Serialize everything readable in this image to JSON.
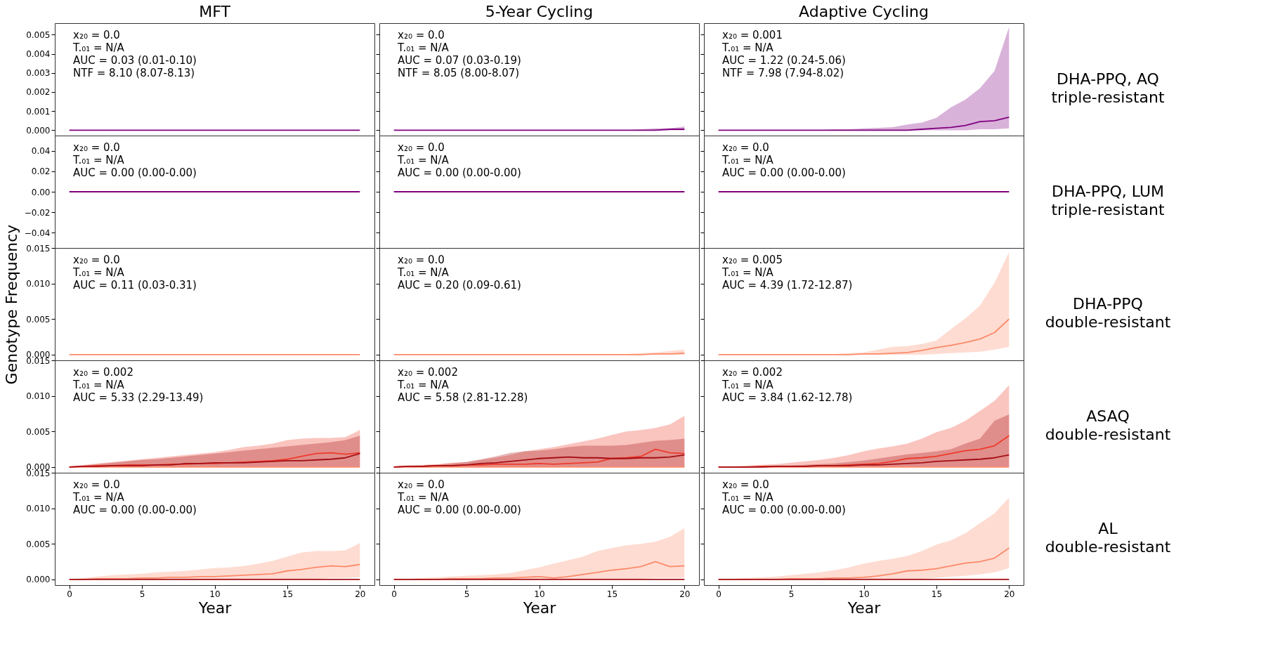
{
  "chart_data": [
    {
      "type": "line",
      "title": "MFT",
      "x": [
        0,
        1,
        2,
        3,
        4,
        5,
        6,
        7,
        8,
        9,
        10,
        11,
        12,
        13,
        14,
        15,
        16,
        17,
        18,
        19,
        20
      ],
      "xlim": [
        -1,
        21
      ],
      "ylim": [
        -0.00028,
        0.0056
      ],
      "yticks": [
        {
          "value": 0,
          "label": "0.000"
        },
        0.001,
        0.002,
        0.003,
        0.004,
        0.005
      ],
      "tick_labels": "y",
      "series": [
        {
          "color": "#800080",
          "values": [
            0,
            0,
            0,
            0,
            0,
            0,
            0,
            0,
            0,
            0,
            0,
            0,
            0,
            0,
            0,
            0,
            0,
            0,
            0,
            0,
            0
          ]
        }
      ],
      "annotations": [
        "x₂₀ = 0.0",
        "T.₀₁ = N/A",
        "AUC = 0.03 (0.01-0.10)",
        "NTF = 8.10 (8.07-8.13)"
      ]
    },
    {
      "type": "line",
      "title": "5-Year Cycling",
      "x": [
        0,
        1,
        2,
        3,
        4,
        5,
        6,
        7,
        8,
        9,
        10,
        11,
        12,
        13,
        14,
        15,
        16,
        17,
        18,
        19,
        20
      ],
      "xlim": [
        -1,
        21
      ],
      "ylim": [
        -0.00028,
        0.0056
      ],
      "yticks": [
        0,
        0.001,
        0.002,
        0.003,
        0.004,
        0.005
      ],
      "tick_labels": false,
      "series": [
        {
          "color": "#800080",
          "values": [
            0,
            0,
            0,
            0,
            0,
            0,
            0,
            0,
            0,
            0,
            0,
            0,
            0,
            0,
            0,
            0,
            0,
            0,
            0,
            5e-05,
            5e-05
          ],
          "lower": [
            0,
            0,
            0,
            0,
            0,
            0,
            0,
            0,
            0,
            0,
            0,
            0,
            0,
            0,
            0,
            0,
            0,
            0,
            0,
            0,
            0
          ],
          "upper": [
            0,
            0,
            0,
            0,
            0,
            0,
            0,
            0,
            0,
            0,
            0,
            0,
            0,
            0,
            0,
            0,
            0,
            5e-05,
            0.0001,
            0.0001,
            0.0002
          ]
        }
      ],
      "annotations": [
        "x₂₀ = 0.0",
        "T.₀₁ = N/A",
        "AUC = 0.07 (0.03-0.19)",
        "NTF = 8.05 (8.00-8.07)"
      ]
    },
    {
      "type": "line",
      "title": "Adaptive Cycling",
      "y2label": "DHA-PPQ, AQ\ntriple-resistant",
      "x": [
        0,
        1,
        2,
        3,
        4,
        5,
        6,
        7,
        8,
        9,
        10,
        11,
        12,
        13,
        14,
        15,
        16,
        17,
        18,
        19,
        20
      ],
      "xlim": [
        -1,
        21
      ],
      "ylim": [
        -0.00028,
        0.0056
      ],
      "yticks": [
        0,
        0.001,
        0.002,
        0.003,
        0.004,
        0.005
      ],
      "tick_labels": false,
      "series": [
        {
          "color": "#800080",
          "values": [
            0,
            0,
            0,
            0,
            0,
            0,
            0,
            0,
            0,
            0,
            0,
            0,
            0,
            0,
            5e-05,
            0.0001,
            0.00015,
            0.00025,
            0.00045,
            0.0005,
            0.00068
          ],
          "lower": [
            0,
            0,
            0,
            0,
            0,
            0,
            0,
            0,
            0,
            0,
            0,
            0,
            0,
            0,
            0,
            0,
            0,
            0,
            5e-05,
            5e-05,
            0.0001
          ],
          "upper": [
            0,
            0,
            0,
            0,
            0,
            0,
            0,
            0,
            5e-05,
            5e-05,
            0.0001,
            0.00012,
            0.00016,
            0.0003,
            0.0004,
            0.00065,
            0.0012,
            0.0016,
            0.0022,
            0.0031,
            0.0054
          ]
        }
      ],
      "annotations": [
        "x₂₀ = 0.001",
        "T.₀₁ = N/A",
        "AUC = 1.22 (0.24-5.06)",
        "NTF = 7.98 (7.94-8.02)"
      ]
    },
    {
      "type": "line",
      "x": [
        0,
        1,
        2,
        3,
        4,
        5,
        6,
        7,
        8,
        9,
        10,
        11,
        12,
        13,
        14,
        15,
        16,
        17,
        18,
        19,
        20
      ],
      "xlim": [
        -1,
        21
      ],
      "ylim": [
        -0.055,
        0.055
      ],
      "yticks": [
        {
          "value": -0.04,
          "label": "−0.04"
        },
        {
          "value": -0.02,
          "label": "−0.02"
        },
        {
          "value": 0,
          "label": "0.00"
        },
        0.02,
        0.04
      ],
      "tick_labels": "y",
      "series": [
        {
          "color": "#800080",
          "values": [
            0,
            0,
            0,
            0,
            0,
            0,
            0,
            0,
            0,
            0,
            0,
            0,
            0,
            0,
            0,
            0,
            0,
            0,
            0,
            0,
            0
          ]
        }
      ],
      "annotations": [
        "x₂₀ = 0.0",
        "T.₀₁ = N/A",
        "AUC = 0.00 (0.00-0.00)"
      ]
    },
    {
      "type": "line",
      "x": [
        0,
        1,
        2,
        3,
        4,
        5,
        6,
        7,
        8,
        9,
        10,
        11,
        12,
        13,
        14,
        15,
        16,
        17,
        18,
        19,
        20
      ],
      "xlim": [
        -1,
        21
      ],
      "ylim": [
        -0.055,
        0.055
      ],
      "yticks": [
        -0.04,
        -0.02,
        0,
        0.02,
        0.04
      ],
      "tick_labels": false,
      "series": [
        {
          "color": "#800080",
          "values": [
            0,
            0,
            0,
            0,
            0,
            0,
            0,
            0,
            0,
            0,
            0,
            0,
            0,
            0,
            0,
            0,
            0,
            0,
            0,
            0,
            0
          ]
        }
      ],
      "annotations": [
        "x₂₀ = 0.0",
        "T.₀₁ = N/A",
        "AUC = 0.00 (0.00-0.00)"
      ]
    },
    {
      "type": "line",
      "y2label": "DHA-PPQ, LUM\ntriple-resistant",
      "x": [
        0,
        1,
        2,
        3,
        4,
        5,
        6,
        7,
        8,
        9,
        10,
        11,
        12,
        13,
        14,
        15,
        16,
        17,
        18,
        19,
        20
      ],
      "xlim": [
        -1,
        21
      ],
      "ylim": [
        -0.055,
        0.055
      ],
      "yticks": [
        -0.04,
        -0.02,
        0,
        0.02,
        0.04
      ],
      "tick_labels": false,
      "series": [
        {
          "color": "#800080",
          "values": [
            0,
            0,
            0,
            0,
            0,
            0,
            0,
            0,
            0,
            0,
            0,
            0,
            0,
            0,
            0,
            0,
            0,
            0,
            0,
            0,
            0
          ]
        }
      ],
      "annotations": [
        "x₂₀ = 0.0",
        "T.₀₁ = N/A",
        "AUC = 0.00 (0.00-0.00)"
      ]
    },
    {
      "type": "line",
      "ylabel": "Genotype Frequency",
      "x": [
        0,
        1,
        2,
        3,
        4,
        5,
        6,
        7,
        8,
        9,
        10,
        11,
        12,
        13,
        14,
        15,
        16,
        17,
        18,
        19,
        20
      ],
      "xlim": [
        -1,
        21
      ],
      "ylim": [
        -0.0008,
        0.015
      ],
      "yticks": [
        {
          "value": 0,
          "label": "0.000"
        },
        0.005,
        {
          "value": 0.01,
          "label": "0.010"
        },
        0.015
      ],
      "tick_labels": "y",
      "series": [
        {
          "color": "#fc8a6a",
          "values": [
            0,
            0,
            0,
            0,
            0,
            0,
            0,
            0,
            0,
            0,
            0,
            0,
            0,
            0,
            0,
            0,
            0,
            0,
            0,
            0,
            0
          ],
          "lower": [
            0,
            0,
            0,
            0,
            0,
            0,
            0,
            0,
            0,
            0,
            0,
            0,
            0,
            0,
            0,
            0,
            0,
            0,
            0,
            0,
            0
          ],
          "upper": [
            0,
            0,
            0,
            0,
            0,
            0,
            0,
            0,
            0,
            0,
            0,
            0,
            0,
            0,
            0,
            0,
            0,
            0.0001,
            0.0001,
            0.0001,
            0.0001
          ]
        }
      ],
      "annotations": [
        "x₂₀ = 0.0",
        "T.₀₁ = N/A",
        "AUC = 0.11 (0.03-0.31)"
      ]
    },
    {
      "type": "line",
      "x": [
        0,
        1,
        2,
        3,
        4,
        5,
        6,
        7,
        8,
        9,
        10,
        11,
        12,
        13,
        14,
        15,
        16,
        17,
        18,
        19,
        20
      ],
      "xlim": [
        -1,
        21
      ],
      "ylim": [
        -0.0008,
        0.015
      ],
      "yticks": [
        0,
        0.005,
        0.01,
        0.015
      ],
      "tick_labels": false,
      "series": [
        {
          "color": "#fc8a6a",
          "values": [
            0,
            0,
            0,
            0,
            0,
            0,
            0,
            0,
            0,
            0,
            0,
            0,
            0,
            0,
            0,
            0,
            0,
            0,
            0.0001,
            0.0001,
            0.0002
          ],
          "lower": [
            0,
            0,
            0,
            0,
            0,
            0,
            0,
            0,
            0,
            0,
            0,
            0,
            0,
            0,
            0,
            0,
            0,
            0,
            0,
            0,
            0
          ],
          "upper": [
            0,
            0,
            0,
            0,
            0,
            0,
            0,
            0,
            0,
            0,
            0,
            0,
            0,
            0,
            0,
            0,
            0.0001,
            0.0002,
            0.0003,
            0.0005,
            0.0007
          ]
        }
      ],
      "annotations": [
        "x₂₀ = 0.0",
        "T.₀₁ = N/A",
        "AUC = 0.20 (0.09-0.61)"
      ]
    },
    {
      "type": "line",
      "y2label": "DHA-PPQ\ndouble-resistant",
      "x": [
        0,
        1,
        2,
        3,
        4,
        5,
        6,
        7,
        8,
        9,
        10,
        11,
        12,
        13,
        14,
        15,
        16,
        17,
        18,
        19,
        20
      ],
      "xlim": [
        -1,
        21
      ],
      "ylim": [
        -0.0008,
        0.015
      ],
      "yticks": [
        0,
        0.005,
        0.01,
        0.015
      ],
      "tick_labels": false,
      "series": [
        {
          "color": "#fc8a6a",
          "values": [
            0,
            0,
            0,
            0,
            0,
            0,
            0,
            0,
            0,
            0,
            0.0001,
            0.0001,
            0.0002,
            0.0003,
            0.0006,
            0.001,
            0.0013,
            0.0017,
            0.0022,
            0.0031,
            0.005
          ],
          "lower": [
            0,
            0,
            0,
            0,
            0,
            0,
            0,
            0,
            0,
            0,
            0,
            0,
            0,
            0,
            0,
            0.0001,
            0.0002,
            0.0003,
            0.0004,
            0.0007,
            0.0011
          ],
          "upper": [
            0,
            0,
            0,
            0,
            0,
            0,
            0,
            0.0001,
            0.0001,
            0.0002,
            0.0003,
            0.0007,
            0.0011,
            0.0012,
            0.0015,
            0.002,
            0.0036,
            0.0051,
            0.0069,
            0.0101,
            0.0144
          ]
        }
      ],
      "annotations": [
        "x₂₀ = 0.005",
        "T.₀₁ = N/A",
        "AUC = 4.39 (1.72-12.87)"
      ]
    },
    {
      "type": "line",
      "x": [
        0,
        1,
        2,
        3,
        4,
        5,
        6,
        7,
        8,
        9,
        10,
        11,
        12,
        13,
        14,
        15,
        16,
        17,
        18,
        19,
        20
      ],
      "xlim": [
        -1,
        21
      ],
      "ylim": [
        -0.0008,
        0.015
      ],
      "yticks": [
        {
          "value": 0,
          "label": "0.000"
        },
        0.005,
        {
          "value": 0.01,
          "label": "0.010"
        },
        0.015
      ],
      "tick_labels": "y",
      "series": [
        {
          "color": "#fc8a6a",
          "values": [
            0,
            0,
            0,
            0,
            0,
            0,
            0,
            0,
            0,
            0,
            0,
            0,
            0,
            0,
            0,
            0,
            0,
            0,
            0,
            0,
            0
          ]
        },
        {
          "color": "#ef3b2c",
          "values": [
            0,
            0.0001,
            0.0002,
            0.0002,
            0.0003,
            0.0003,
            0.0003,
            0.0004,
            0.0004,
            0.0005,
            0.0005,
            0.0006,
            0.0007,
            0.0008,
            0.0009,
            0.0011,
            0.0015,
            0.0019,
            0.002,
            0.0018,
            0.002
          ],
          "lower": [
            0,
            0,
            0,
            0,
            0,
            0,
            0,
            0,
            0,
            0,
            0,
            0,
            0,
            0,
            0,
            0,
            0,
            0,
            0,
            0,
            0
          ],
          "upper": [
            0,
            0.0003,
            0.0005,
            0.0007,
            0.0009,
            0.0011,
            0.0013,
            0.0015,
            0.0017,
            0.0019,
            0.0021,
            0.0024,
            0.0028,
            0.003,
            0.0033,
            0.0038,
            0.004,
            0.0041,
            0.0041,
            0.0042,
            0.0052
          ]
        },
        {
          "color": "#a50f15",
          "values": [
            0,
            0.0001,
            0.0001,
            0.0002,
            0.0002,
            0.0002,
            0.0003,
            0.0003,
            0.0005,
            0.0005,
            0.0006,
            0.0006,
            0.0006,
            0.0007,
            0.0008,
            0.0009,
            0.0009,
            0.001,
            0.0011,
            0.0013,
            0.0019
          ],
          "lower": [
            0,
            0,
            0,
            0,
            0,
            0,
            0,
            0,
            0,
            0,
            0,
            0,
            0,
            0,
            0,
            0,
            0,
            0,
            0,
            0,
            0
          ],
          "upper": [
            0,
            0.0002,
            0.0004,
            0.0006,
            0.0008,
            0.001,
            0.0011,
            0.0013,
            0.0015,
            0.0017,
            0.0019,
            0.0021,
            0.0023,
            0.0025,
            0.0027,
            0.0029,
            0.0031,
            0.0033,
            0.0035,
            0.0038,
            0.0044
          ]
        }
      ],
      "annotations": [
        "x₂₀ = 0.002",
        "T.₀₁ = N/A",
        "AUC = 5.33 (2.29-13.49)"
      ]
    },
    {
      "type": "line",
      "x": [
        0,
        1,
        2,
        3,
        4,
        5,
        6,
        7,
        8,
        9,
        10,
        11,
        12,
        13,
        14,
        15,
        16,
        17,
        18,
        19,
        20
      ],
      "xlim": [
        -1,
        21
      ],
      "ylim": [
        -0.0008,
        0.015
      ],
      "yticks": [
        0,
        0.005,
        0.01,
        0.015
      ],
      "tick_labels": false,
      "series": [
        {
          "color": "#fc8a6a",
          "values": [
            0,
            0,
            0,
            0,
            0,
            0,
            0,
            0,
            0,
            0,
            0,
            0,
            0,
            0,
            0,
            0,
            0,
            0,
            0,
            0,
            0
          ]
        },
        {
          "color": "#ef3b2c",
          "values": [
            0,
            0.0001,
            0.0001,
            0.0002,
            0.0002,
            0.0003,
            0.0003,
            0.0004,
            0.0004,
            0.0004,
            0.0005,
            0.0004,
            0.0005,
            0.0006,
            0.0007,
            0.0012,
            0.0013,
            0.0015,
            0.0025,
            0.002,
            0.0019
          ],
          "lower": [
            0,
            0,
            0,
            0,
            0,
            0,
            0,
            0,
            0,
            0,
            0,
            0,
            0,
            0,
            0,
            0,
            0,
            0,
            0,
            0,
            0
          ],
          "upper": [
            0,
            0.0002,
            0.0003,
            0.0004,
            0.0006,
            0.0007,
            0.001,
            0.0013,
            0.0017,
            0.0022,
            0.0025,
            0.0028,
            0.0032,
            0.0036,
            0.004,
            0.0045,
            0.005,
            0.0052,
            0.0055,
            0.006,
            0.0072
          ]
        },
        {
          "color": "#a50f15",
          "values": [
            0,
            0.0001,
            0.0001,
            0.0002,
            0.0002,
            0.0003,
            0.0005,
            0.0006,
            0.0008,
            0.001,
            0.0012,
            0.0013,
            0.0014,
            0.0013,
            0.0013,
            0.0012,
            0.0012,
            0.0013,
            0.0013,
            0.0014,
            0.0017
          ],
          "lower": [
            0,
            0,
            0,
            0,
            0,
            0,
            0,
            0,
            0,
            0,
            0,
            0,
            0,
            0,
            0,
            0,
            0,
            0,
            0,
            0,
            0
          ],
          "upper": [
            0,
            0.0001,
            0.0002,
            0.0003,
            0.0005,
            0.0007,
            0.0011,
            0.0015,
            0.002,
            0.0022,
            0.0023,
            0.0025,
            0.0028,
            0.003,
            0.003,
            0.003,
            0.0031,
            0.0034,
            0.0037,
            0.0038,
            0.004
          ]
        }
      ],
      "annotations": [
        "x₂₀ = 0.002",
        "T.₀₁ = N/A",
        "AUC = 5.58 (2.81-12.28)"
      ]
    },
    {
      "type": "line",
      "y2label": "ASAQ\ndouble-resistant",
      "x": [
        0,
        1,
        2,
        3,
        4,
        5,
        6,
        7,
        8,
        9,
        10,
        11,
        12,
        13,
        14,
        15,
        16,
        17,
        18,
        19,
        20
      ],
      "xlim": [
        -1,
        21
      ],
      "ylim": [
        -0.0008,
        0.015
      ],
      "yticks": [
        0,
        0.005,
        0.01,
        0.015
      ],
      "tick_labels": false,
      "series": [
        {
          "color": "#fc8a6a",
          "values": [
            0,
            0,
            0,
            0,
            0,
            0,
            0,
            0,
            0,
            0,
            0,
            0,
            0,
            0,
            0,
            0,
            0,
            0,
            0,
            0,
            0
          ]
        },
        {
          "color": "#ef3b2c",
          "values": [
            0,
            0,
            0,
            0.0001,
            0.0001,
            0.0001,
            0.0001,
            0.0002,
            0.0002,
            0.0003,
            0.0004,
            0.0005,
            0.0008,
            0.0012,
            0.0013,
            0.0015,
            0.0019,
            0.0023,
            0.0025,
            0.003,
            0.0044
          ],
          "lower": [
            0,
            0,
            0,
            0,
            0,
            0,
            0,
            0,
            0,
            0,
            0,
            0,
            0,
            0,
            0,
            0,
            0,
            0,
            0,
            0,
            0
          ],
          "upper": [
            0,
            0.0001,
            0.0002,
            0.0003,
            0.0004,
            0.0006,
            0.0008,
            0.001,
            0.0013,
            0.0017,
            0.0022,
            0.0026,
            0.0029,
            0.0033,
            0.004,
            0.0049,
            0.0055,
            0.0065,
            0.0079,
            0.0093,
            0.0115
          ]
        },
        {
          "color": "#a50f15",
          "values": [
            0,
            0,
            0,
            0,
            0.0001,
            0.0001,
            0.0001,
            0.0002,
            0.0002,
            0.0002,
            0.0003,
            0.0003,
            0.0004,
            0.0005,
            0.0006,
            0.0008,
            0.0009,
            0.001,
            0.0011,
            0.0013,
            0.0017
          ],
          "lower": [
            0,
            0,
            0,
            0,
            0,
            0,
            0,
            0,
            0,
            0,
            0,
            0,
            0,
            0,
            0,
            0,
            0,
            0,
            0,
            0,
            0
          ],
          "upper": [
            0,
            0,
            0.0001,
            0.0001,
            0.0002,
            0.0002,
            0.0003,
            0.0004,
            0.0005,
            0.0007,
            0.0009,
            0.0012,
            0.0015,
            0.0018,
            0.002,
            0.0022,
            0.0025,
            0.0033,
            0.004,
            0.0065,
            0.0074
          ]
        }
      ],
      "annotations": [
        "x₂₀ = 0.002",
        "T.₀₁ = N/A",
        "AUC = 3.84 (1.62-12.78)"
      ]
    },
    {
      "type": "line",
      "xlabel": "Year",
      "x": [
        0,
        1,
        2,
        3,
        4,
        5,
        6,
        7,
        8,
        9,
        10,
        11,
        12,
        13,
        14,
        15,
        16,
        17,
        18,
        19,
        20
      ],
      "xlim": [
        -1,
        21
      ],
      "xticks": [
        0,
        5,
        10,
        15,
        20
      ],
      "ylim": [
        -0.0008,
        0.015
      ],
      "yticks": [
        {
          "value": 0,
          "label": "0.000"
        },
        0.005,
        {
          "value": 0.01,
          "label": "0.010"
        },
        0.015
      ],
      "series": [
        {
          "color": "#fc8a6a",
          "values": [
            0,
            0,
            0.0001,
            0.0001,
            0.0001,
            0.0002,
            0.0002,
            0.0003,
            0.0003,
            0.0004,
            0.0004,
            0.0005,
            0.0006,
            0.0007,
            0.0008,
            0.0012,
            0.0014,
            0.0017,
            0.0019,
            0.0018,
            0.0021
          ],
          "lower": [
            0,
            0,
            0,
            0,
            0,
            0,
            0,
            0,
            0,
            0,
            0,
            0,
            0,
            0,
            0,
            0,
            0,
            0.0001,
            0.0002,
            0.0002,
            0.0003
          ],
          "upper": [
            0,
            0.0002,
            0.0004,
            0.0006,
            0.0007,
            0.0008,
            0.001,
            0.0011,
            0.0012,
            0.0014,
            0.0016,
            0.0017,
            0.0019,
            0.0022,
            0.0026,
            0.0032,
            0.0038,
            0.004,
            0.004,
            0.0041,
            0.0051
          ]
        },
        {
          "color": "#a50f15",
          "values": [
            0,
            0,
            0,
            0,
            0,
            0,
            0,
            0,
            0,
            0,
            0,
            0,
            0,
            0,
            0,
            0,
            0,
            0,
            0,
            0,
            0
          ]
        }
      ],
      "annotations": [
        "x₂₀ = 0.0",
        "T.₀₁ = N/A",
        "AUC = 0.00 (0.00-0.00)"
      ]
    },
    {
      "type": "line",
      "xlabel": "Year",
      "x": [
        0,
        1,
        2,
        3,
        4,
        5,
        6,
        7,
        8,
        9,
        10,
        11,
        12,
        13,
        14,
        15,
        16,
        17,
        18,
        19,
        20
      ],
      "xlim": [
        -1,
        21
      ],
      "xticks": [
        0,
        5,
        10,
        15,
        20
      ],
      "ylim": [
        -0.0008,
        0.015
      ],
      "yticks": [
        0,
        0.005,
        0.01,
        0.015
      ],
      "tick_labels": "x",
      "series": [
        {
          "color": "#fc8a6a",
          "values": [
            0,
            0,
            0,
            0,
            0.0001,
            0.0001,
            0.0001,
            0.0002,
            0.0002,
            0.0003,
            0.0004,
            0.0002,
            0.0004,
            0.0007,
            0.001,
            0.0013,
            0.0015,
            0.0018,
            0.0025,
            0.0018,
            0.0019
          ],
          "lower": [
            0,
            0,
            0,
            0,
            0,
            0,
            0,
            0,
            0,
            0,
            0,
            0,
            0,
            0,
            0,
            0.0001,
            0.0001,
            0.0001,
            0.0002,
            0.0002,
            0.0002
          ],
          "upper": [
            0,
            0.0001,
            0.0002,
            0.0003,
            0.0004,
            0.0005,
            0.0006,
            0.0007,
            0.0009,
            0.0013,
            0.0017,
            0.0022,
            0.0027,
            0.0032,
            0.004,
            0.0044,
            0.0048,
            0.005,
            0.0053,
            0.006,
            0.0072
          ]
        },
        {
          "color": "#a50f15",
          "values": [
            0,
            0,
            0,
            0,
            0,
            0,
            0,
            0,
            0,
            0,
            0,
            0,
            0,
            0,
            0,
            0,
            0,
            0,
            0,
            0,
            0
          ]
        }
      ],
      "annotations": [
        "x₂₀ = 0.0",
        "T.₀₁ = N/A",
        "AUC = 0.00 (0.00-0.00)"
      ]
    },
    {
      "type": "line",
      "xlabel": "Year",
      "y2label": "AL\ndouble-resistant",
      "x": [
        0,
        1,
        2,
        3,
        4,
        5,
        6,
        7,
        8,
        9,
        10,
        11,
        12,
        13,
        14,
        15,
        16,
        17,
        18,
        19,
        20
      ],
      "xlim": [
        -1,
        21
      ],
      "xticks": [
        0,
        5,
        10,
        15,
        20
      ],
      "ylim": [
        -0.0008,
        0.015
      ],
      "yticks": [
        0,
        0.005,
        0.01,
        0.015
      ],
      "tick_labels": "x",
      "series": [
        {
          "color": "#fc8a6a",
          "values": [
            0,
            0,
            0,
            0,
            0,
            0.0001,
            0.0001,
            0.0001,
            0.0002,
            0.0002,
            0.0003,
            0.0005,
            0.0008,
            0.0012,
            0.0013,
            0.0015,
            0.0019,
            0.0023,
            0.0025,
            0.003,
            0.0044
          ],
          "lower": [
            0,
            0,
            0,
            0,
            0,
            0,
            0,
            0,
            0,
            0,
            0,
            0,
            0,
            0,
            0.0001,
            0.0002,
            0.0004,
            0.0005,
            0.0007,
            0.001,
            0.0016
          ],
          "upper": [
            0,
            0.0001,
            0.0002,
            0.0003,
            0.0004,
            0.0006,
            0.0008,
            0.001,
            0.0013,
            0.0017,
            0.0022,
            0.0026,
            0.0029,
            0.0033,
            0.004,
            0.0049,
            0.0055,
            0.0065,
            0.0079,
            0.0093,
            0.0115
          ]
        },
        {
          "color": "#a50f15",
          "values": [
            0,
            0,
            0,
            0,
            0,
            0,
            0,
            0,
            0,
            0,
            0,
            0,
            0,
            0,
            0,
            0,
            0,
            0,
            0,
            0,
            0
          ]
        }
      ],
      "annotations": [
        "x₂₀ = 0.0",
        "T.₀₁ = N/A",
        "AUC = 0.00 (0.00-0.00)"
      ]
    }
  ]
}
